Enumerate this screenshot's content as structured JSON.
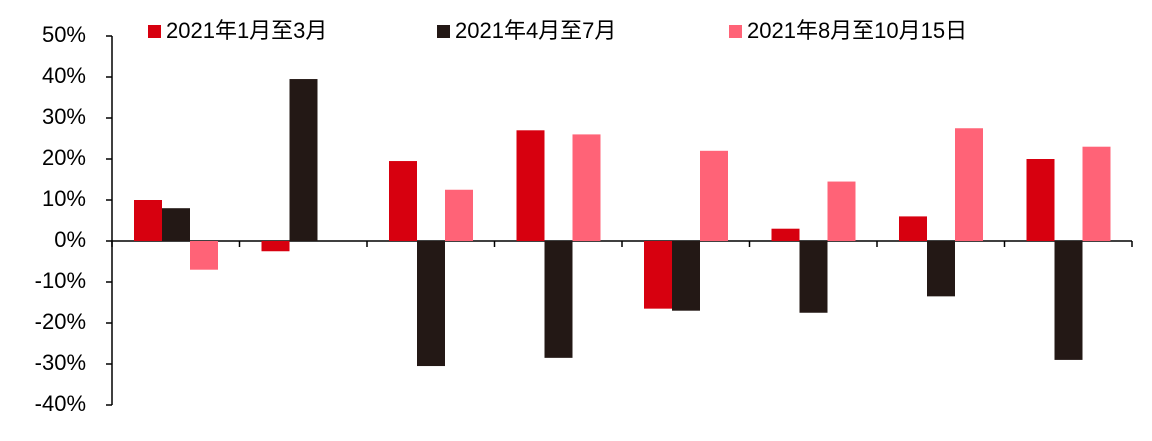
{
  "chart_data": {
    "type": "bar",
    "categories": [
      null,
      null,
      null,
      null,
      null,
      null,
      null,
      null
    ],
    "series": [
      {
        "name": "2021年1月至3月",
        "color": "#d7000f",
        "values": [
          10,
          -2.5,
          19.5,
          27,
          -16.5,
          3,
          6,
          20
        ]
      },
      {
        "name": "2021年4月至7月",
        "color": "#231815",
        "values": [
          8,
          39.5,
          -30.5,
          -28.5,
          -17,
          -17.5,
          -13.5,
          -29
        ]
      },
      {
        "name": "2021年8月至10月15日",
        "color": "#ff6377",
        "values": [
          -7,
          null,
          12.5,
          26,
          22,
          14.5,
          27.5,
          23
        ]
      }
    ],
    "ylim": [
      -40,
      50
    ],
    "yticks": [
      {
        "value": -40,
        "label": "-40%"
      },
      {
        "value": -30,
        "label": "-30%"
      },
      {
        "value": -20,
        "label": "-20%"
      },
      {
        "value": -10,
        "label": "-10%"
      },
      {
        "value": 0,
        "label": "0%"
      },
      {
        "value": 10,
        "label": "10%"
      },
      {
        "value": 20,
        "label": "20%"
      },
      {
        "value": 30,
        "label": "30%"
      },
      {
        "value": 40,
        "label": "40%"
      },
      {
        "value": 50,
        "label": "50%"
      }
    ],
    "legend": "top"
  }
}
